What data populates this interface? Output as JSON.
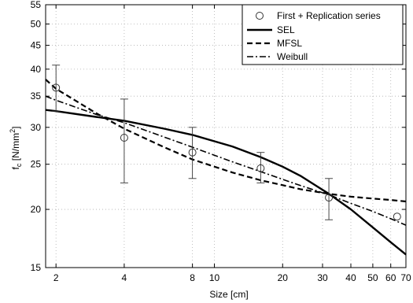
{
  "chart_data": {
    "type": "line",
    "xlabel": "Size [cm]",
    "ylabel_main": "f",
    "ylabel_sub": "c",
    "ylabel_unit": " [N/mm",
    "ylabel_sup": "2",
    "ylabel_close": "]",
    "x_scale": "log",
    "y_scale": "log",
    "xlim": [
      1.8,
      70
    ],
    "ylim": [
      15,
      55
    ],
    "x_ticks": [
      2,
      4,
      8,
      10,
      20,
      30,
      40,
      50,
      60,
      70
    ],
    "x_tick_labels": [
      "2",
      "4",
      "8",
      "10",
      "20",
      "30",
      "40",
      "50",
      "60",
      "70"
    ],
    "y_ticks": [
      15,
      20,
      25,
      30,
      35,
      40,
      45,
      50,
      55
    ],
    "y_tick_labels": [
      "15",
      "20",
      "25",
      "30",
      "35",
      "40",
      "45",
      "50",
      "55"
    ],
    "grid": true,
    "legend_position": "top-right",
    "series": [
      {
        "name": "First + Replication series",
        "kind": "points",
        "marker": "circle",
        "x": [
          2,
          4,
          8,
          16,
          32,
          64
        ],
        "y": [
          36.5,
          28.5,
          26.5,
          24.5,
          21.2,
          19.3
        ],
        "err_low": [
          32.5,
          22.8,
          23.3,
          22.8,
          19.0
        ],
        "err_high": [
          40.8,
          34.5,
          30.0,
          26.5,
          23.3
        ]
      },
      {
        "name": "SEL",
        "kind": "line",
        "dash": "solid",
        "x": [
          1.8,
          2,
          3,
          4,
          6,
          8,
          12,
          16,
          20,
          24,
          28,
          32,
          40,
          50,
          60,
          70
        ],
        "y": [
          32.7,
          32.5,
          31.6,
          31.0,
          29.8,
          28.9,
          27.3,
          25.9,
          24.7,
          23.6,
          22.5,
          21.6,
          20.0,
          18.3,
          17.0,
          16.0
        ]
      },
      {
        "name": "MFSL",
        "kind": "line",
        "dash": "dashed",
        "x": [
          1.8,
          2,
          3,
          4,
          6,
          8,
          12,
          16,
          24,
          32,
          40,
          50,
          60,
          70
        ],
        "y": [
          38.0,
          36.3,
          32.2,
          29.8,
          27.2,
          25.6,
          24.0,
          23.1,
          22.1,
          21.6,
          21.3,
          21.1,
          20.95,
          20.8
        ]
      },
      {
        "name": "Weibull",
        "kind": "line",
        "dash": "dashdot",
        "x": [
          1.8,
          2,
          3,
          4,
          6,
          8,
          12,
          16,
          24,
          32,
          40,
          50,
          60,
          70
        ],
        "y": [
          35.0,
          34.3,
          32.0,
          30.7,
          28.6,
          27.2,
          25.3,
          24.1,
          22.5,
          21.5,
          20.6,
          19.8,
          19.1,
          18.5
        ]
      }
    ]
  }
}
